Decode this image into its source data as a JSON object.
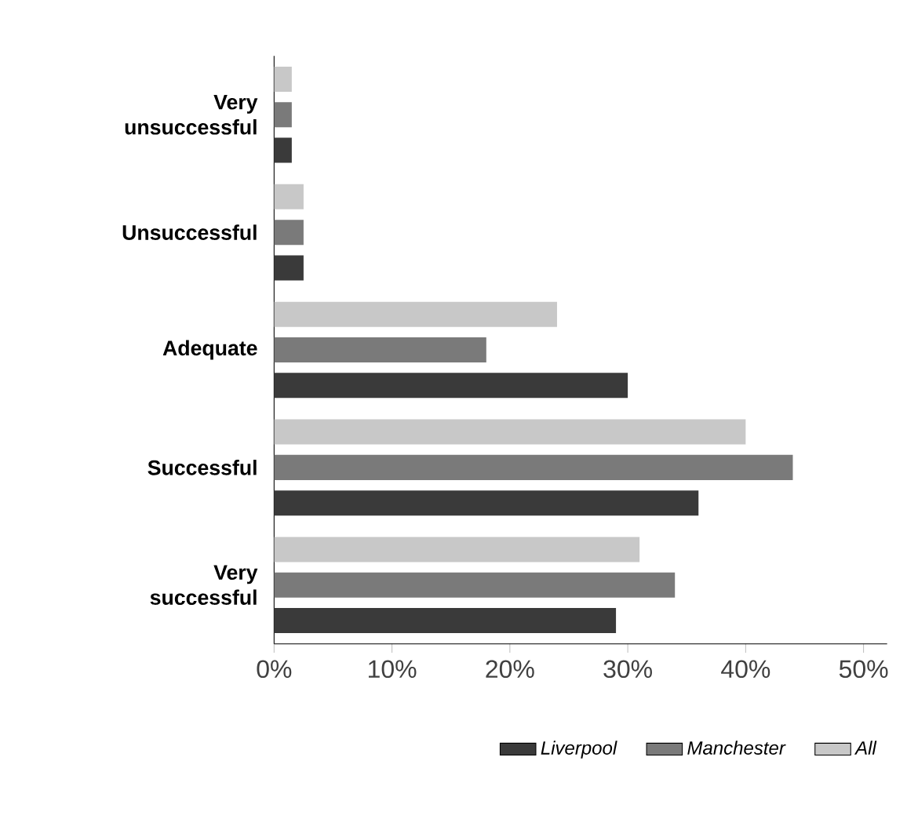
{
  "chart_data": {
    "type": "bar",
    "orientation": "horizontal",
    "categories": [
      "Very unsuccessful",
      "Unsuccessful",
      "Adequate",
      "Successful",
      "Very successful"
    ],
    "series": [
      {
        "name": "Liverpool",
        "color": "#3a3a3a",
        "values": [
          1.5,
          2.5,
          30,
          36,
          29
        ]
      },
      {
        "name": "Manchester",
        "color": "#7a7a7a",
        "values": [
          1.5,
          2.5,
          18,
          44,
          34
        ]
      },
      {
        "name": "All",
        "color": "#c8c8c8",
        "values": [
          1.5,
          2.5,
          24,
          40,
          31
        ]
      }
    ],
    "xlim": [
      0,
      52
    ],
    "xticks": [
      {
        "value": 0,
        "label": "0%"
      },
      {
        "value": 10,
        "label": "10%"
      },
      {
        "value": 20,
        "label": "20%"
      },
      {
        "value": 30,
        "label": "30%"
      },
      {
        "value": 40,
        "label": "40%"
      },
      {
        "value": 50,
        "label": "50%"
      }
    ],
    "legend": "bottom",
    "grid": false
  }
}
